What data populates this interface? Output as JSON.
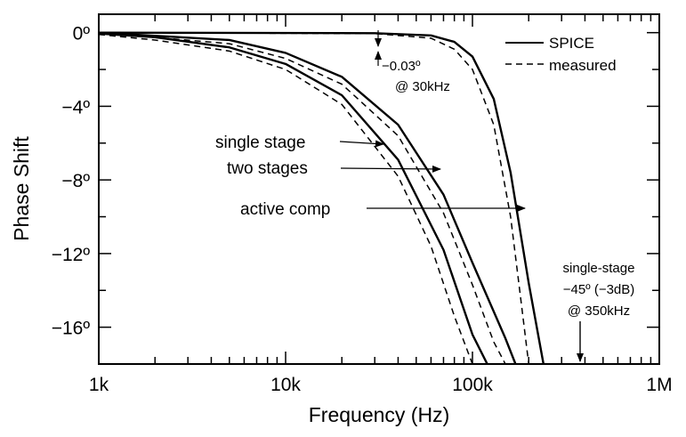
{
  "chart_data": {
    "type": "line",
    "xlabel": "Frequency (Hz)",
    "ylabel": "Phase Shift",
    "x_scale": "log",
    "xlim": [
      1000,
      1000000
    ],
    "ylim": [
      -18,
      1
    ],
    "x_ticks": [
      {
        "value": 1000,
        "label": "1k"
      },
      {
        "value": 10000,
        "label": "10k"
      },
      {
        "value": 100000,
        "label": "100k"
      },
      {
        "value": 1000000,
        "label": "1M"
      }
    ],
    "y_ticks": [
      {
        "value": 0,
        "label": "0º"
      },
      {
        "value": -4,
        "label": "−4º"
      },
      {
        "value": -8,
        "label": "−8º"
      },
      {
        "value": -12,
        "label": "−12º"
      },
      {
        "value": -16,
        "label": "−16º"
      }
    ],
    "grid": false,
    "legend": {
      "position": "top-right",
      "entries": [
        {
          "label": "SPICE",
          "style": "solid"
        },
        {
          "label": "measured",
          "style": "dashed"
        }
      ]
    },
    "series": [
      {
        "group": "single stage",
        "kind": "SPICE",
        "style": "solid",
        "x": [
          1000,
          2000,
          5000,
          10000,
          20000,
          40000,
          70000,
          100000,
          120000
        ],
        "y": [
          -0.05,
          -0.25,
          -0.8,
          -1.7,
          -3.4,
          -6.9,
          -11.8,
          -16.4,
          -18
        ]
      },
      {
        "group": "single stage",
        "kind": "measured",
        "style": "dashed",
        "x": [
          1000,
          2000,
          5000,
          10000,
          20000,
          40000,
          60000,
          80000,
          100000
        ],
        "y": [
          -0.1,
          -0.4,
          -1.0,
          -2.0,
          -3.9,
          -7.8,
          -11.6,
          -15.4,
          -18
        ]
      },
      {
        "group": "two stages",
        "kind": "SPICE",
        "style": "solid",
        "x": [
          1000,
          5000,
          10000,
          20000,
          40000,
          70000,
          100000,
          150000,
          170000
        ],
        "y": [
          0,
          -0.4,
          -1.1,
          -2.4,
          -5.0,
          -8.8,
          -12.5,
          -16.6,
          -18
        ]
      },
      {
        "group": "two stages",
        "kind": "measured",
        "style": "dashed",
        "x": [
          1000,
          5000,
          10000,
          20000,
          40000,
          70000,
          100000,
          130000,
          150000
        ],
        "y": [
          0,
          -0.6,
          -1.4,
          -2.8,
          -5.6,
          -9.8,
          -13.7,
          -16.8,
          -18
        ]
      },
      {
        "group": "active comp",
        "kind": "SPICE",
        "style": "solid",
        "x": [
          1000,
          30000,
          60000,
          80000,
          100000,
          130000,
          160000,
          200000,
          240000
        ],
        "y": [
          0,
          -0.03,
          -0.15,
          -0.5,
          -1.3,
          -3.6,
          -7.6,
          -13.6,
          -18
        ]
      },
      {
        "group": "active comp",
        "kind": "measured",
        "style": "dashed",
        "x": [
          1000,
          30000,
          60000,
          80000,
          100000,
          130000,
          160000,
          180000,
          200000
        ],
        "y": [
          0,
          -0.05,
          -0.3,
          -0.9,
          -2.0,
          -5.0,
          -10.0,
          -14.2,
          -18
        ]
      }
    ],
    "annotations": {
      "marker_value": "−0.03º",
      "marker_freq": "@ 30kHz",
      "single_stage_label": "single stage",
      "two_stages_label": "two stages",
      "active_comp_label": "active comp",
      "note_line1": "single-stage",
      "note_line2": "−45º (−3dB)",
      "note_line3": "@ 350kHz"
    }
  }
}
